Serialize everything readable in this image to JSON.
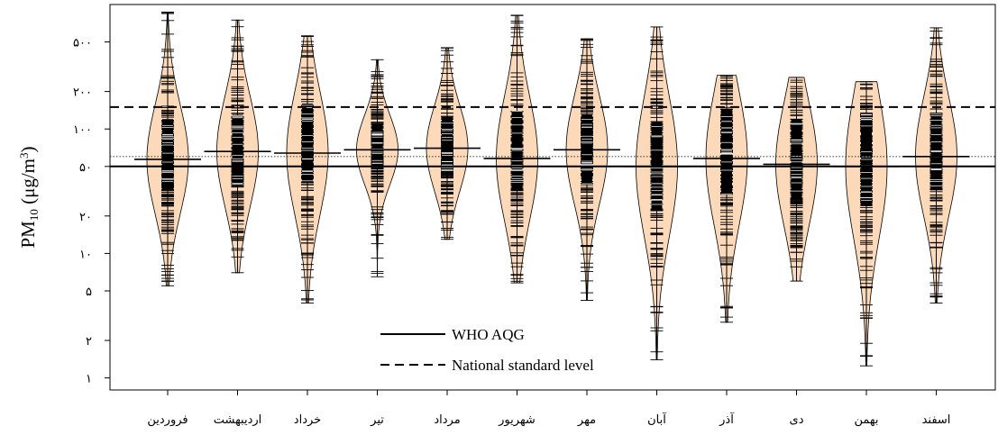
{
  "chart_data": {
    "type": "beanplot",
    "ylabel": {
      "base": "PM",
      "sub": "10",
      "unit_open": " (μg/m",
      "unit_sup": "3",
      "unit_close": ")"
    },
    "yscale": "log",
    "ylim": [
      0.8,
      1000
    ],
    "y_ticks": [
      1,
      2,
      5,
      10,
      20,
      50,
      100,
      200,
      500
    ],
    "y_tick_labels": [
      "۱",
      "۲",
      "۵",
      "۱۰",
      "۲۰",
      "۵۰",
      "۱۰۰",
      "۲۰۰",
      "۵۰۰"
    ],
    "categories": [
      "فروردین",
      "اردیبهشت",
      "خرداد",
      "تیر",
      "مرداد",
      "شهریور",
      "مهر",
      "آبان",
      "آذر",
      "دی",
      "بهمن",
      "اسفند"
    ],
    "series": [
      {
        "median": 57,
        "min": 5.5,
        "max": 870,
        "q1": 33,
        "q3": 120
      },
      {
        "median": 66,
        "min": 7,
        "max": 750,
        "q1": 35,
        "q3": 130
      },
      {
        "median": 64,
        "min": 4,
        "max": 560,
        "q1": 37,
        "q3": 160
      },
      {
        "median": 68,
        "min": 6.5,
        "max": 360,
        "q1": 48,
        "q3": 110
      },
      {
        "median": 70,
        "min": 13,
        "max": 450,
        "q1": 45,
        "q3": 125
      },
      {
        "median": 58,
        "min": 5.8,
        "max": 820,
        "q1": 32,
        "q3": 140
      },
      {
        "median": 68,
        "min": 4.2,
        "max": 530,
        "q1": 36,
        "q3": 130
      },
      {
        "median": 50,
        "min": 1.4,
        "max": 660,
        "q1": 22,
        "q3": 115
      },
      {
        "median": 58,
        "min": 2.8,
        "max": 270,
        "q1": 30,
        "q3": 145
      },
      {
        "median": 52,
        "min": 6,
        "max": 260,
        "q1": 28,
        "q3": 120
      },
      {
        "median": 50,
        "min": 1.25,
        "max": 240,
        "q1": 24,
        "q3": 135
      },
      {
        "median": 60,
        "min": 4,
        "max": 650,
        "q1": 33,
        "q3": 135
      }
    ],
    "reference_lines": {
      "who_aqg": 50,
      "national_standard": 150,
      "overall_mean": 60
    },
    "legend": [
      {
        "label": "WHO AQG",
        "style": "solid"
      },
      {
        "label": "National standard level",
        "style": "dashed"
      }
    ],
    "legend_placement": "bottom-center",
    "colors": {
      "bean_fill": "#fcd9b8",
      "line": "#000000"
    }
  }
}
